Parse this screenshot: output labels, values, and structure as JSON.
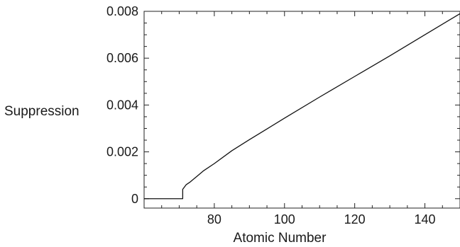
{
  "chart_data": {
    "type": "line",
    "title": "",
    "xlabel": "Atomic Number",
    "ylabel": "Suppression",
    "xlim": [
      60,
      150
    ],
    "ylim": [
      -0.0004,
      0.008
    ],
    "x_ticks": [
      80,
      100,
      120,
      140
    ],
    "x_tick_labels": [
      "80",
      "100",
      "120",
      "140"
    ],
    "y_ticks": [
      0,
      0.002,
      0.004,
      0.006,
      0.008
    ],
    "y_tick_labels": [
      "0",
      "0.002",
      "0.004",
      "0.006",
      "0.008"
    ],
    "grid": false,
    "series": [
      {
        "name": "",
        "x": [
          60,
          70,
          71,
          71,
          72,
          73,
          75,
          77,
          80,
          85,
          90,
          95,
          100,
          110,
          120,
          130,
          140,
          150
        ],
        "y": [
          0,
          0,
          0,
          0.0004,
          0.0006,
          0.0007,
          0.00095,
          0.0012,
          0.0015,
          0.00205,
          0.00252,
          0.00298,
          0.00344,
          0.00434,
          0.00522,
          0.0061,
          0.007,
          0.0079
        ]
      }
    ]
  }
}
